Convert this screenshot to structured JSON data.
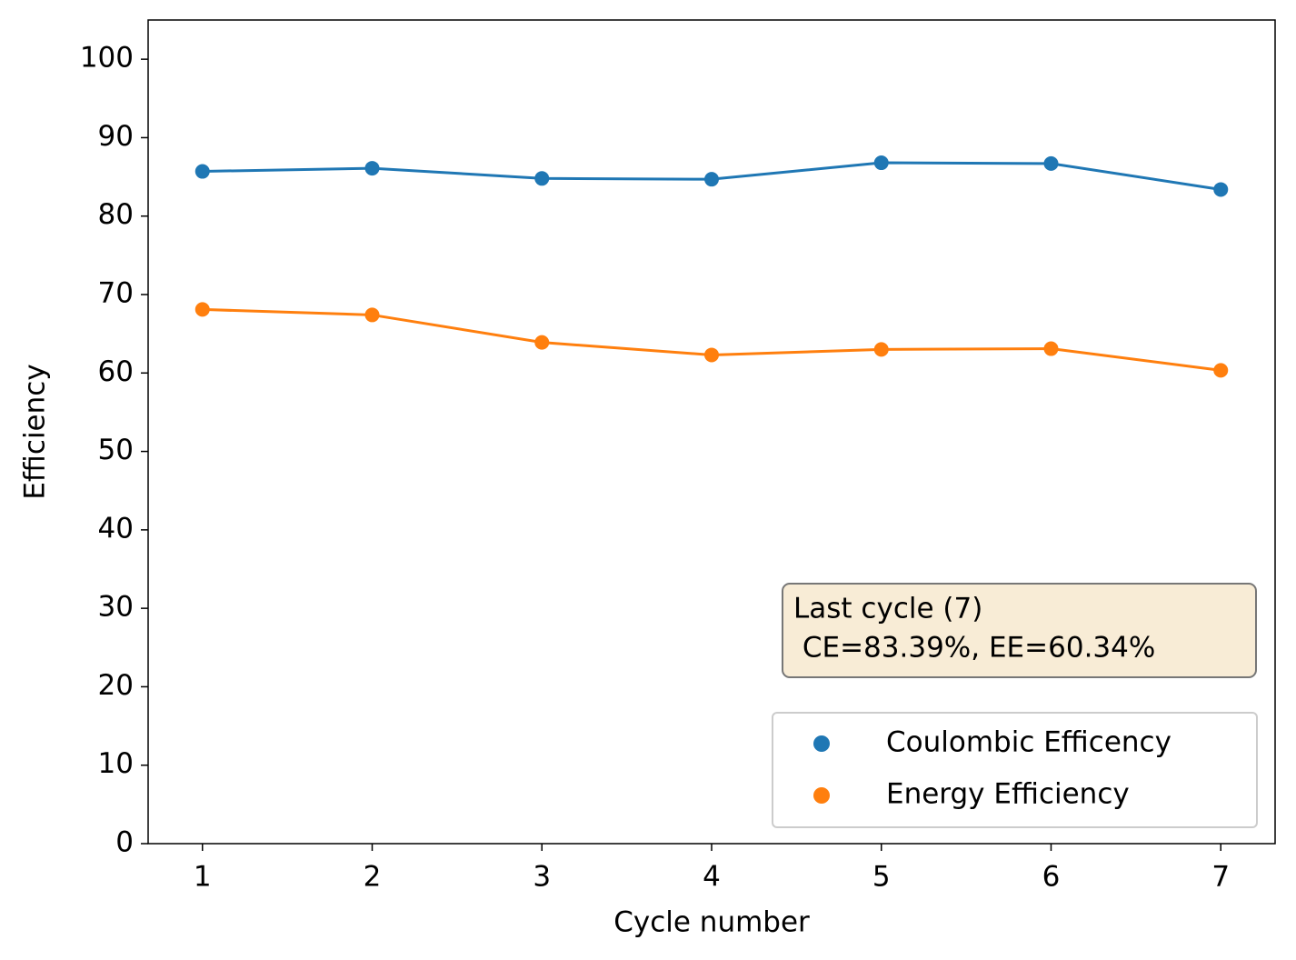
{
  "chart_data": {
    "type": "line",
    "x_label": "Cycle number",
    "y_label": "Efficiency",
    "x": [
      1,
      2,
      3,
      4,
      5,
      6,
      7
    ],
    "series": [
      {
        "name": "Coulombic Efficency",
        "color": "#1f77b4",
        "values": [
          85.7,
          86.1,
          84.8,
          84.7,
          86.8,
          86.7,
          83.39
        ]
      },
      {
        "name": "Energy Efficiency",
        "color": "#ff7f0e",
        "values": [
          68.1,
          67.4,
          63.9,
          62.3,
          63.0,
          63.1,
          60.34
        ]
      }
    ],
    "xlim": [
      0.68,
      7.32
    ],
    "xticks": [
      1,
      2,
      3,
      4,
      5,
      6,
      7
    ],
    "ylim": [
      0,
      105
    ],
    "yticks": [
      0,
      10,
      20,
      30,
      40,
      50,
      60,
      70,
      80,
      90,
      100
    ],
    "annotation": [
      "Last cycle (7)",
      " CE=83.39%, EE=60.34%"
    ],
    "legend": "lower right",
    "grid": false
  }
}
